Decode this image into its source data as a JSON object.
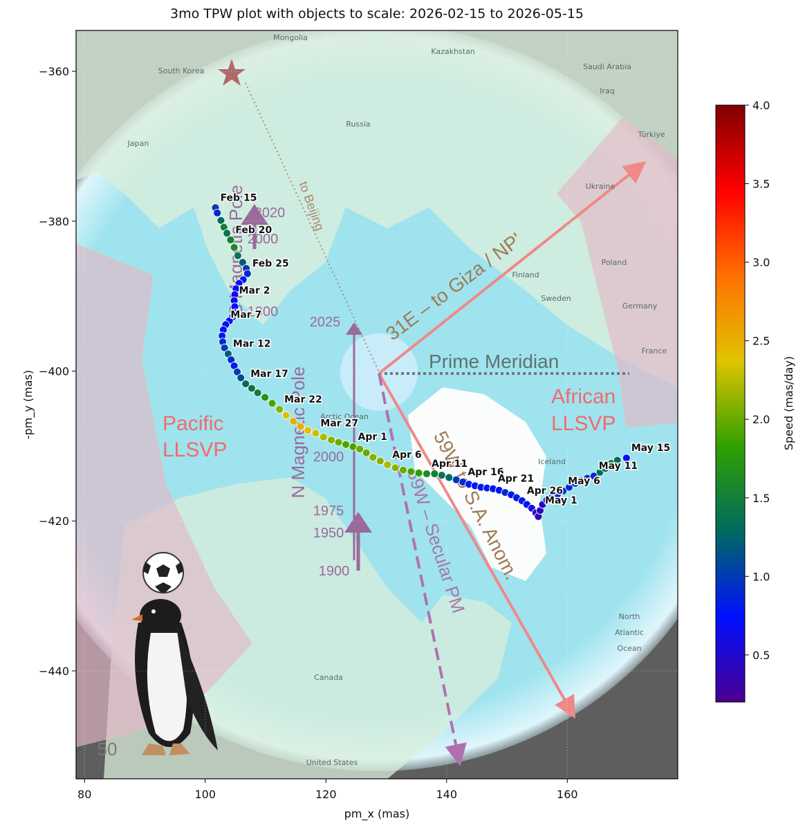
{
  "chart_data": {
    "type": "scatter",
    "title": "3mo TPW plot with objects to scale: 2026-02-15 to 2026-05-15",
    "xlabel": "pm_x (mas)",
    "ylabel": "-pm_y (mas)",
    "xlim": [
      78.6,
      178.3
    ],
    "ylim": [
      -454.4,
      -354.55
    ],
    "xticks": [
      80,
      100,
      120,
      140,
      160
    ],
    "yticks": [
      {
        "value": -440,
        "label": "−440"
      },
      {
        "value": -420,
        "label": "−420"
      },
      {
        "value": -400,
        "label": "−400"
      },
      {
        "value": -380,
        "label": "−380"
      },
      {
        "value": -360,
        "label": "−360"
      }
    ],
    "grid": true,
    "x": [
      101.7,
      102.0,
      102.6,
      103.1,
      103.6,
      104.2,
      104.8,
      105.4,
      106.2,
      106.8,
      107.0,
      106.3,
      105.6,
      105.1,
      104.9,
      104.8,
      104.9,
      105.0,
      104.5,
      104.0,
      103.4,
      103.0,
      102.8,
      102.9,
      103.2,
      103.8,
      104.3,
      104.8,
      105.3,
      105.9,
      106.7,
      107.7,
      108.7,
      109.9,
      111.1,
      112.3,
      113.4,
      114.6,
      115.8,
      117.0,
      118.3,
      119.6,
      120.9,
      122.1,
      123.3,
      124.5,
      125.6,
      126.7,
      127.8,
      129.0,
      130.2,
      131.5,
      132.8,
      134.1,
      135.4,
      136.7,
      138.0,
      139.2,
      140.4,
      141.6,
      142.7,
      143.7,
      144.7,
      145.7,
      146.7,
      147.7,
      148.7,
      149.7,
      150.7,
      151.6,
      152.5,
      153.3,
      154.1,
      154.8,
      155.2,
      155.5,
      155.9,
      156.6,
      157.5,
      158.4,
      159.3,
      160.3,
      161.3,
      162.3,
      163.3,
      164.4,
      165.4,
      166.3,
      167.3,
      168.3,
      169.8
    ],
    "y": [
      -378.2,
      -378.9,
      -379.9,
      -380.8,
      -381.6,
      -382.5,
      -383.5,
      -384.6,
      -385.5,
      -386.3,
      -387.0,
      -387.8,
      -388.3,
      -389.0,
      -389.8,
      -390.6,
      -391.4,
      -392.2,
      -392.8,
      -393.3,
      -393.8,
      -394.5,
      -395.3,
      -396.1,
      -396.9,
      -397.7,
      -398.5,
      -399.3,
      -400.1,
      -400.9,
      -401.7,
      -402.3,
      -402.9,
      -403.5,
      -404.3,
      -405.1,
      -405.9,
      -406.7,
      -407.4,
      -407.9,
      -408.3,
      -408.8,
      -409.2,
      -409.5,
      -409.8,
      -410.1,
      -410.4,
      -410.9,
      -411.5,
      -412.0,
      -412.5,
      -412.9,
      -413.2,
      -413.4,
      -413.6,
      -413.7,
      -413.7,
      -413.9,
      -414.2,
      -414.5,
      -414.8,
      -415.1,
      -415.3,
      -415.5,
      -415.6,
      -415.7,
      -415.9,
      -416.2,
      -416.5,
      -416.9,
      -417.3,
      -417.8,
      -418.3,
      -418.9,
      -419.4,
      -418.6,
      -417.8,
      -417.2,
      -416.8,
      -416.4,
      -416.0,
      -415.5,
      -415.0,
      -414.6,
      -414.3,
      -414.0,
      -413.5,
      -413.0,
      -412.3,
      -411.9,
      -411.6
    ],
    "speed": [
      1.0,
      0.9,
      1.3,
      1.5,
      1.4,
      1.5,
      1.6,
      1.4,
      1.2,
      1.0,
      0.9,
      0.8,
      0.7,
      0.7,
      0.6,
      0.7,
      0.7,
      0.8,
      0.8,
      0.7,
      0.7,
      0.7,
      0.8,
      0.9,
      1.0,
      1.2,
      0.9,
      0.8,
      1.0,
      1.1,
      1.3,
      1.4,
      1.5,
      1.7,
      1.9,
      2.1,
      2.4,
      2.5,
      2.5,
      2.4,
      2.3,
      2.2,
      2.1,
      2.0,
      1.9,
      1.9,
      2.0,
      2.0,
      2.1,
      2.1,
      2.2,
      2.1,
      2.0,
      1.9,
      1.8,
      1.6,
      1.5,
      1.4,
      1.3,
      1.0,
      0.9,
      0.8,
      0.8,
      0.8,
      0.8,
      0.8,
      0.8,
      0.9,
      0.8,
      0.8,
      0.8,
      0.7,
      0.6,
      0.5,
      0.4,
      0.4,
      0.5,
      0.6,
      0.7,
      0.8,
      0.9,
      0.9,
      1.0,
      1.0,
      0.9,
      0.9,
      1.3,
      1.4,
      1.5,
      1.3,
      0.7
    ],
    "point_labels": [
      "Feb 15",
      null,
      null,
      null,
      null,
      "Feb 20",
      null,
      null,
      null,
      null,
      "Feb 25",
      null,
      null,
      null,
      null,
      "Mar 2",
      null,
      null,
      null,
      null,
      "Mar 7",
      null,
      null,
      null,
      null,
      "Mar 12",
      null,
      null,
      null,
      null,
      "Mar 17",
      null,
      null,
      null,
      null,
      "Mar 22",
      null,
      null,
      null,
      null,
      "Mar 27",
      null,
      null,
      null,
      null,
      "Apr 1",
      null,
      null,
      null,
      null,
      "Apr 6",
      null,
      null,
      null,
      null,
      "Apr 11",
      null,
      null,
      null,
      null,
      "Apr 16",
      null,
      null,
      null,
      null,
      "Apr 21",
      null,
      null,
      null,
      null,
      "Apr 26",
      null,
      null,
      null,
      null,
      "May 1",
      null,
      null,
      null,
      null,
      "May 6",
      null,
      null,
      null,
      null,
      "May 11",
      null,
      null,
      null,
      null,
      "May 15"
    ],
    "colorbar": {
      "label": "Speed (mas/day)",
      "lim": [
        0.2,
        4.0
      ],
      "ticks": [
        0.5,
        {
          "value": 1.0,
          "label": "1.0"
        },
        1.5,
        {
          "value": 2.0,
          "label": "2.0"
        },
        2.5,
        {
          "value": 3.0,
          "label": "3.0"
        },
        3.5,
        {
          "value": 4.0,
          "label": "4.0"
        }
      ],
      "colors": [
        "#4b0090",
        "#0010ff",
        "#006a60",
        "#30a000",
        "#e0c400",
        "#ff7000",
        "#ff0000",
        "#800000"
      ]
    },
    "annotations": [
      "Pacific",
      "LLSVP",
      "African",
      "LLSVP",
      "Prime Meridian",
      "31E – to Giza / NP'",
      "59W to S.A. Anom.",
      "59W – Secular PM",
      "to Beijing",
      "N Magnetic Pole",
      "S Magnetic Pole",
      "2025",
      "2000",
      "1975",
      "1950",
      "1900",
      "2020",
      "2000",
      "1900",
      "50"
    ],
    "map_labels": [
      "Mongolia",
      "South Korea",
      "Kazakhstan",
      "Saudi Arabia",
      "Iraq",
      "Russia",
      "Japan",
      "Türkiye",
      "Ukraine",
      "Poland",
      "Finland",
      "Sweden",
      "Germany",
      "France",
      "Iceland",
      "Arctic Ocean",
      "Canada",
      "United States",
      "North",
      "Atlantic",
      "Ocean"
    ]
  }
}
